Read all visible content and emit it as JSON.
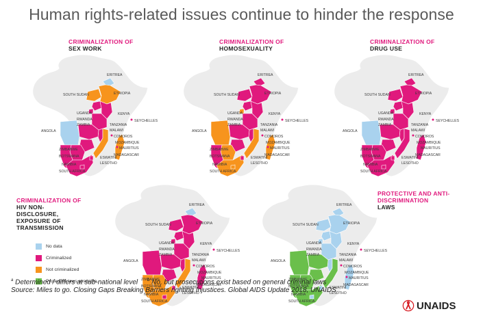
{
  "title": "Human rights-related issues continue to hinder the response",
  "colors": {
    "no_data": "#a9d2ee",
    "criminalized": "#e0197d",
    "not_criminalized": "#f7941d",
    "protective": "#6abf4b",
    "background_land": "#ececec"
  },
  "country_labels": {
    "eritrea": "ERITREA",
    "south_sudan": "SOUTH SUDAN",
    "ethiopia": "ETHIOPIA",
    "uganda": "UGANDA",
    "kenya": "KENYA",
    "rwanda": "RWANDA",
    "seychelles": "SEYCHELLES",
    "tanzania": "TANZANIA",
    "malawi": "MALAWI",
    "zambia": "ZAMBIA",
    "angola": "ANGOLA",
    "comoros": "COMOROS",
    "mozambique": "MOZAMBIQUE",
    "mauritius": "MAURITIUS",
    "zimbabwe": "ZIMBABWE",
    "botswana": "BOTSWANA",
    "namibia": "NAMIBIA",
    "eswatini": "ESWATINI",
    "madagascar": "MADAGASCAR",
    "lesotho": "LESOTHO",
    "south_africa": "SOUTH AFRICA"
  },
  "panels": [
    {
      "title_line1": "CRIMINALIZATION OF",
      "title_line2": "SEX WORK",
      "fills": {
        "eritrea": "no_data",
        "ethiopia": "not_criminalized",
        "south_sudan": "not_criminalized",
        "uganda": "criminalized",
        "kenya": "criminalized",
        "rwanda": "criminalized",
        "tanzania": "criminalized",
        "zambia": "criminalized",
        "malawi": "criminalized",
        "angola": "no_data",
        "mozambique": "not_criminalized",
        "madagascar": "not_criminalized",
        "zimbabwe": "criminalized",
        "botswana": "criminalized",
        "namibia": "criminalized",
        "south_africa": "criminalized",
        "lesotho": "criminalized",
        "eswatini": "criminalized"
      }
    },
    {
      "title_line1": "CRIMINALIZATION OF",
      "title_line2": "HOMOSEXUALITY",
      "fills": {
        "eritrea": "criminalized",
        "ethiopia": "criminalized",
        "south_sudan": "criminalized",
        "uganda": "criminalized",
        "kenya": "criminalized",
        "rwanda": "not_criminalized",
        "tanzania": "criminalized",
        "zambia": "criminalized",
        "malawi": "criminalized",
        "angola": "not_criminalized",
        "mozambique": "not_criminalized",
        "madagascar": "not_criminalized",
        "zimbabwe": "criminalized",
        "botswana": "not_criminalized",
        "namibia": "criminalized",
        "south_africa": "not_criminalized",
        "lesotho": "not_criminalized",
        "eswatini": "criminalized"
      }
    },
    {
      "title_line1": "CRIMINALIZATION OF",
      "title_line2": "DRUG USE",
      "fills": {
        "eritrea": "criminalized",
        "ethiopia": "criminalized",
        "south_sudan": "criminalized",
        "uganda": "criminalized",
        "kenya": "criminalized",
        "rwanda": "criminalized",
        "tanzania": "criminalized",
        "zambia": "criminalized",
        "malawi": "criminalized",
        "angola": "no_data",
        "mozambique": "criminalized",
        "madagascar": "criminalized",
        "zimbabwe": "criminalized",
        "botswana": "criminalized",
        "namibia": "criminalized",
        "south_africa": "criminalized",
        "lesotho": "criminalized",
        "eswatini": "criminalized"
      }
    },
    {
      "title_line1": "CRIMINALIZATION OF",
      "title_line2": "HIV NON-DISCLOSURE, EXPOSURE OF TRANSMISSION",
      "fills": {
        "eritrea": "no_data",
        "ethiopia": "criminalized",
        "south_sudan": "criminalized",
        "uganda": "criminalized",
        "kenya": "criminalized",
        "rwanda": "criminalized",
        "tanzania": "criminalized",
        "zambia": "criminalized",
        "malawi": "criminalized",
        "angola": "criminalized",
        "mozambique": "not_criminalized",
        "madagascar": "criminalized",
        "zimbabwe": "criminalized",
        "botswana": "not_criminalized",
        "namibia": "not_criminalized",
        "south_africa": "not_criminalized",
        "lesotho": "criminalized",
        "eswatini": "criminalized"
      }
    },
    {
      "title_line1": "PROTECTIVE AND ANTI-DISCRIMINATION",
      "title_line2": "LAWS",
      "fills": {
        "eritrea": "no_data",
        "ethiopia": "no_data",
        "south_sudan": "no_data",
        "uganda": "no_data",
        "kenya": "no_data",
        "rwanda": "no_data",
        "tanzania": "no_data",
        "zambia": "protective",
        "malawi": "no_data",
        "angola": "protective",
        "mozambique": "protective",
        "madagascar": "no_data",
        "zimbabwe": "protective",
        "botswana": "protective",
        "namibia": "protective",
        "south_africa": "protective",
        "lesotho": "no_data",
        "eswatini": "no_data"
      }
    }
  ],
  "legend": [
    {
      "key": "no_data",
      "label": "No data"
    },
    {
      "key": "criminalized",
      "label": "Criminalized"
    },
    {
      "key": "not_criminalized",
      "label": "Not criminalized"
    },
    {
      "key": "protective",
      "label": "Protective laws available"
    }
  ],
  "footnote": {
    "a_mark": "a",
    "a_text": "Determined / differs at sub-national level",
    "b_mark": "b",
    "b_text": "No, but prosecutions exist based on general criminal laws",
    "source": "Source: Miles to go. Closing Gaps Breaking Barriers righting Injustices. Global AIDS Update 2018, UNAIDS"
  },
  "logo_text": "UNAIDS"
}
